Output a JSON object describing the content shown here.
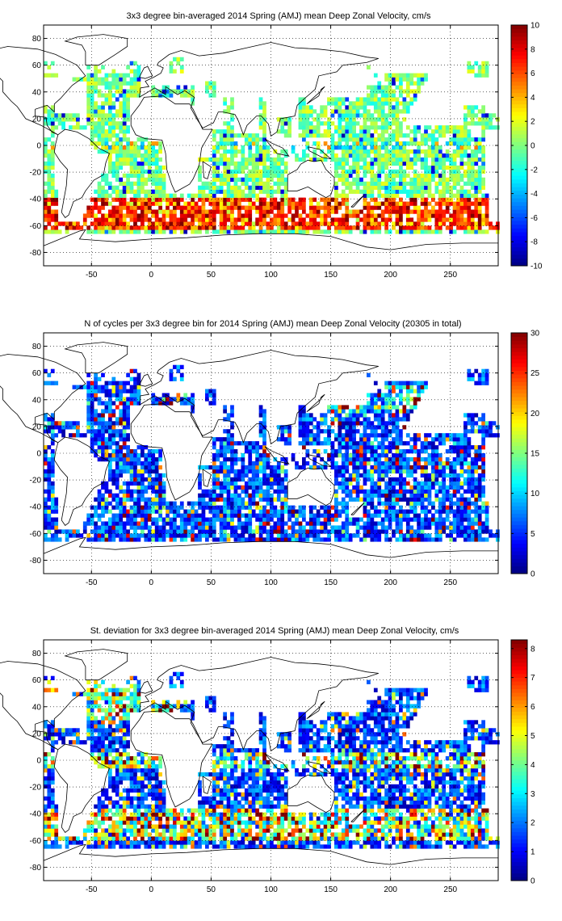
{
  "chart_data": [
    {
      "type": "heatmap",
      "title": "3x3 degree bin-averaged 2014 Spring (AMJ) mean Deep Zonal Velocity, cm/s",
      "xlabel": "",
      "ylabel": "",
      "xlim": [
        -90,
        290
      ],
      "ylim": [
        -90,
        90
      ],
      "x_ticks": [
        -50,
        0,
        50,
        100,
        150,
        200,
        250
      ],
      "y_ticks": [
        80,
        60,
        40,
        20,
        0,
        -20,
        -40,
        -60,
        -80
      ],
      "grid": true,
      "colormap": "jet",
      "colorbar": {
        "min": -10,
        "max": 10,
        "ticks": [
          10,
          8,
          6,
          4,
          2,
          0,
          -2,
          -4,
          -6,
          -8,
          -10
        ],
        "placement": "right"
      },
      "bin_deg": 3,
      "pattern": "velocity"
    },
    {
      "type": "heatmap",
      "title": "N of cycles per 3x3 degree bin for 2014 Spring (AMJ) mean Deep Zonal Velocity (20305 in total)",
      "xlabel": "",
      "ylabel": "",
      "xlim": [
        -90,
        290
      ],
      "ylim": [
        -90,
        90
      ],
      "x_ticks": [
        -50,
        0,
        50,
        100,
        150,
        200,
        250
      ],
      "y_ticks": [
        80,
        60,
        40,
        20,
        0,
        -20,
        -40,
        -60,
        -80
      ],
      "grid": true,
      "colormap": "jet",
      "colorbar": {
        "min": 0,
        "max": 30,
        "ticks": [
          30,
          25,
          20,
          15,
          10,
          5,
          0
        ],
        "placement": "right"
      },
      "bin_deg": 3,
      "pattern": "count"
    },
    {
      "type": "heatmap",
      "title": "St. deviation for 3x3 degree bin-averaged 2014 Spring (AMJ) mean Deep Zonal Velocity, cm/s",
      "xlabel": "",
      "ylabel": "",
      "xlim": [
        -90,
        290
      ],
      "ylim": [
        -90,
        90
      ],
      "x_ticks": [
        -50,
        0,
        50,
        100,
        150,
        200,
        250
      ],
      "y_ticks": [
        80,
        60,
        40,
        20,
        0,
        -20,
        -40,
        -60,
        -80
      ],
      "grid": true,
      "colormap": "jet",
      "colorbar": {
        "min": 0,
        "max": 8.3,
        "ticks": [
          8,
          7,
          6,
          5,
          4,
          3,
          2,
          1,
          0
        ],
        "placement": "right"
      },
      "bin_deg": 3,
      "pattern": "stdev"
    }
  ]
}
